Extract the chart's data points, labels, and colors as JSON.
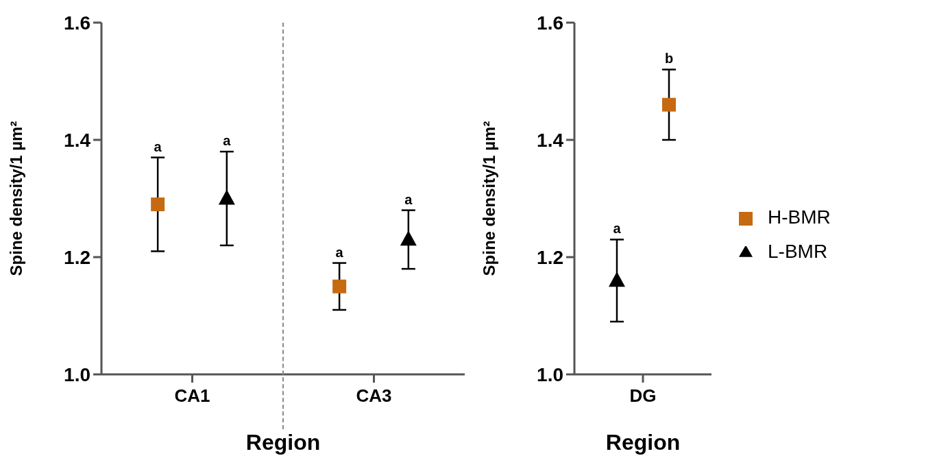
{
  "chart_data": [
    {
      "type": "scatter",
      "categories": [
        "CA1",
        "CA3"
      ],
      "xlabel": "Region",
      "ylabel": "Spine density/1 µm²",
      "ylim": [
        1.0,
        1.6
      ],
      "yticks": [
        {
          "value": 1.0,
          "label": "1.0"
        },
        {
          "value": 1.2,
          "label": "1.2"
        },
        {
          "value": 1.4,
          "label": "1.4"
        },
        {
          "value": 1.6,
          "label": "1.6"
        }
      ],
      "grid": false,
      "legend": false,
      "series": [
        {
          "color": "#c66a12",
          "marker": "square",
          "values": [
            1.29,
            1.15
          ],
          "errors": [
            0.08,
            0.04
          ],
          "value_labels": [
            "a",
            "a"
          ]
        },
        {
          "color": "#000000",
          "marker": "triangle",
          "values": [
            1.3,
            1.23
          ],
          "errors": [
            0.08,
            0.05
          ],
          "value_labels": [
            "a",
            "a"
          ]
        }
      ]
    },
    {
      "type": "scatter",
      "categories": [
        "DG"
      ],
      "xlabel": "Region",
      "ylabel": "Spine density/1 µm²",
      "ylim": [
        1.0,
        1.6
      ],
      "yticks": [
        {
          "value": 1.0,
          "label": "1.0"
        },
        {
          "value": 1.2,
          "label": "1.2"
        },
        {
          "value": 1.4,
          "label": "1.4"
        },
        {
          "value": 1.6,
          "label": "1.6"
        }
      ],
      "grid": false,
      "legend": "right",
      "series": [
        {
          "name": "L-BMR",
          "color": "#000000",
          "marker": "triangle",
          "values": [
            1.16
          ],
          "errors": [
            0.07
          ],
          "value_labels": [
            "a"
          ]
        },
        {
          "name": "H-BMR",
          "color": "#c66a12",
          "marker": "square",
          "values": [
            1.46
          ],
          "errors": [
            0.06
          ],
          "value_labels": [
            "b"
          ]
        }
      ]
    }
  ]
}
